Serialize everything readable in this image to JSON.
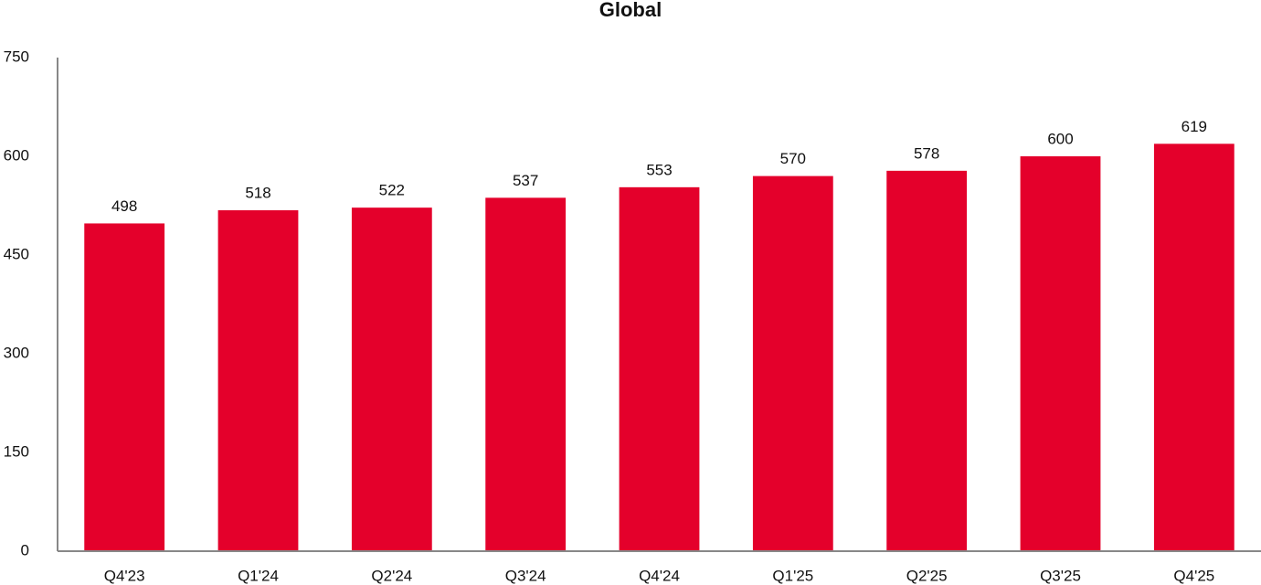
{
  "chart_data": {
    "type": "bar",
    "title": "Global",
    "categories": [
      "Q4'23",
      "Q1'24",
      "Q2'24",
      "Q3'24",
      "Q4'24",
      "Q1'25",
      "Q2'25",
      "Q3'25",
      "Q4'25"
    ],
    "values": [
      498,
      518,
      522,
      537,
      553,
      570,
      578,
      600,
      619
    ],
    "color": "#e4002b",
    "ylim": [
      0,
      750
    ],
    "yticks": [
      0,
      150,
      300,
      450,
      600,
      750
    ],
    "grid": false
  }
}
